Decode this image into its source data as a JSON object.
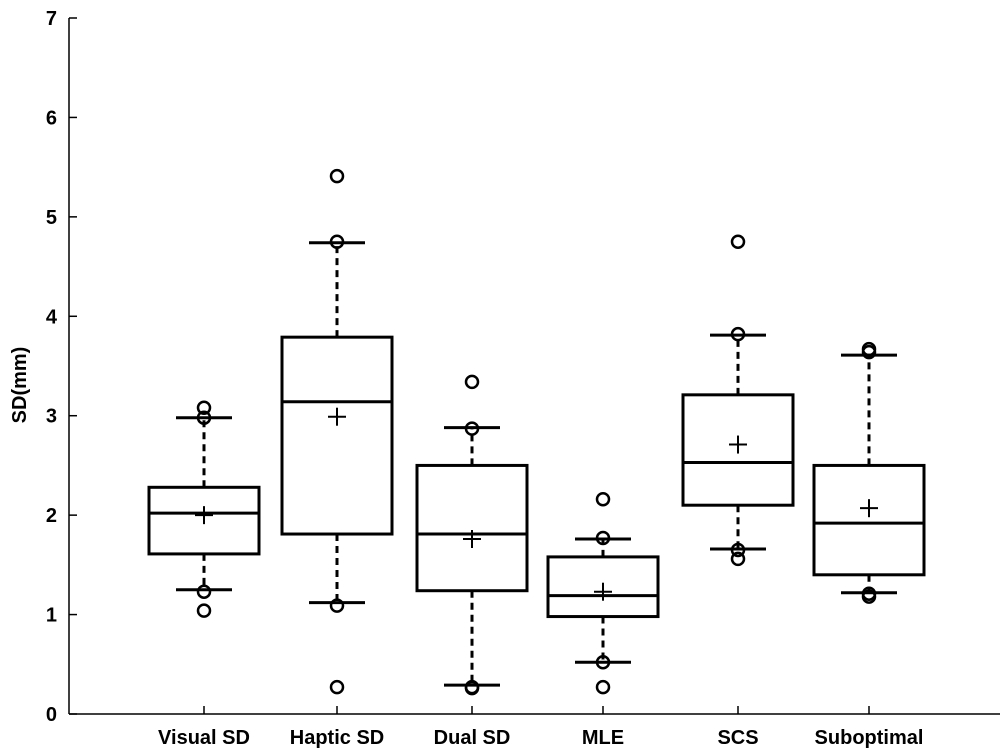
{
  "chart_data": {
    "type": "box",
    "title": "",
    "xlabel": "",
    "ylabel": "SD(mm)",
    "ylim": [
      0,
      7
    ],
    "yticks": [
      0,
      1,
      2,
      3,
      4,
      5,
      6,
      7
    ],
    "categories": [
      "Visual SD",
      "Haptic SD",
      "Dual SD",
      "MLE",
      "SCS",
      "Suboptimal"
    ],
    "boxes": [
      {
        "category": "Visual SD",
        "q1": 1.61,
        "median": 2.02,
        "q3": 2.28,
        "whisker_low": 1.25,
        "whisker_high": 2.98,
        "mean": 2.0,
        "outliers": [
          1.04,
          1.23,
          2.98,
          3.08
        ]
      },
      {
        "category": "Haptic SD",
        "q1": 1.81,
        "median": 3.14,
        "q3": 3.79,
        "whisker_low": 1.12,
        "whisker_high": 4.74,
        "mean": 2.99,
        "outliers": [
          0.27,
          1.09,
          4.75,
          5.41
        ]
      },
      {
        "category": "Dual SD",
        "q1": 1.24,
        "median": 1.81,
        "q3": 2.5,
        "whisker_low": 0.29,
        "whisker_high": 2.88,
        "mean": 1.76,
        "outliers": [
          0.26,
          0.27,
          2.87,
          3.34
        ]
      },
      {
        "category": "MLE",
        "q1": 0.98,
        "median": 1.19,
        "q3": 1.58,
        "whisker_low": 0.52,
        "whisker_high": 1.76,
        "mean": 1.23,
        "outliers": [
          0.27,
          0.52,
          1.77,
          2.16
        ]
      },
      {
        "category": "SCS",
        "q1": 2.1,
        "median": 2.53,
        "q3": 3.21,
        "whisker_low": 1.66,
        "whisker_high": 3.81,
        "mean": 2.71,
        "outliers": [
          1.56,
          1.65,
          3.82,
          4.75
        ]
      },
      {
        "category": "Suboptimal",
        "q1": 1.4,
        "median": 1.92,
        "q3": 2.5,
        "whisker_low": 1.22,
        "whisker_high": 3.61,
        "mean": 2.07,
        "outliers": [
          1.18,
          1.21,
          3.64,
          3.67
        ]
      }
    ],
    "grid": false,
    "legend": "none"
  }
}
